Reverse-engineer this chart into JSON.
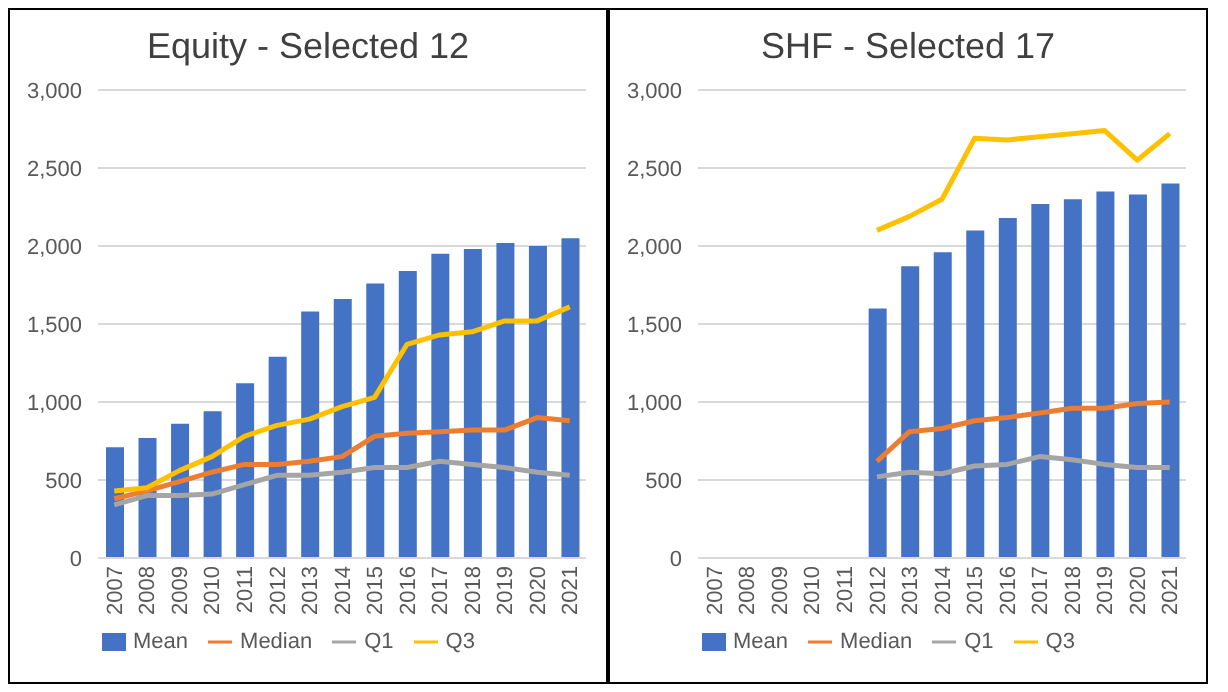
{
  "chart_data": [
    {
      "type": "bar",
      "title": "Equity - Selected 12",
      "categories": [
        "2007",
        "2008",
        "2009",
        "2010",
        "2011",
        "2012",
        "2013",
        "2014",
        "2015",
        "2016",
        "2017",
        "2018",
        "2019",
        "2020",
        "2021"
      ],
      "ylim": [
        0,
        3000
      ],
      "yticks": [
        {
          "value": 0,
          "label": "0"
        },
        {
          "value": 500,
          "label": "500"
        },
        {
          "value": 1000,
          "label": "1,000"
        },
        {
          "value": 1500,
          "label": "1,500"
        },
        {
          "value": 2000,
          "label": "2,000"
        },
        {
          "value": 2500,
          "label": "2,500"
        },
        {
          "value": 3000,
          "label": "3,000"
        }
      ],
      "grid": "y",
      "legend": "bottom",
      "series": [
        {
          "name": "Mean",
          "color": "#4472c4",
          "values": [
            710,
            770,
            860,
            940,
            1120,
            1290,
            1580,
            1660,
            1760,
            1840,
            1950,
            1980,
            2020,
            2000,
            2050
          ]
        },
        {
          "name": "Median",
          "type": "line",
          "color": "#ed7d31",
          "values": [
            380,
            430,
            490,
            550,
            600,
            600,
            620,
            650,
            780,
            800,
            810,
            820,
            820,
            900,
            880
          ]
        },
        {
          "name": "Q1",
          "type": "line",
          "color": "#a5a5a5",
          "values": [
            340,
            400,
            400,
            410,
            470,
            530,
            530,
            550,
            580,
            580,
            620,
            600,
            580,
            550,
            530
          ]
        },
        {
          "name": "Q3",
          "type": "line",
          "color": "#ffc000",
          "values": [
            430,
            450,
            560,
            650,
            780,
            850,
            890,
            970,
            1030,
            1370,
            1430,
            1450,
            1520,
            1520,
            1610
          ]
        }
      ]
    },
    {
      "type": "bar",
      "title": "SHF - Selected 17",
      "categories": [
        "2007",
        "2008",
        "2009",
        "2010",
        "2011",
        "2012",
        "2013",
        "2014",
        "2015",
        "2016",
        "2017",
        "2018",
        "2019",
        "2020",
        "2021"
      ],
      "ylim": [
        0,
        3000
      ],
      "yticks": [
        {
          "value": 0,
          "label": "0"
        },
        {
          "value": 500,
          "label": "500"
        },
        {
          "value": 1000,
          "label": "1,000"
        },
        {
          "value": 1500,
          "label": "1,500"
        },
        {
          "value": 2000,
          "label": "2,000"
        },
        {
          "value": 2500,
          "label": "2,500"
        },
        {
          "value": 3000,
          "label": "3,000"
        }
      ],
      "grid": "y",
      "legend": "bottom",
      "series": [
        {
          "name": "Mean",
          "color": "#4472c4",
          "values": [
            null,
            null,
            null,
            null,
            null,
            1600,
            1870,
            1960,
            2100,
            2180,
            2270,
            2300,
            2350,
            2330,
            2400
          ]
        },
        {
          "name": "Median",
          "type": "line",
          "color": "#ed7d31",
          "values": [
            null,
            null,
            null,
            null,
            null,
            620,
            810,
            830,
            880,
            900,
            930,
            960,
            960,
            990,
            1000
          ]
        },
        {
          "name": "Q1",
          "type": "line",
          "color": "#a5a5a5",
          "values": [
            null,
            null,
            null,
            null,
            null,
            520,
            550,
            540,
            590,
            600,
            650,
            630,
            600,
            580,
            580
          ]
        },
        {
          "name": "Q3",
          "type": "line",
          "color": "#ffc000",
          "values": [
            null,
            null,
            null,
            null,
            null,
            2100,
            2190,
            2300,
            2690,
            2680,
            2700,
            2720,
            2740,
            2550,
            2720
          ]
        }
      ]
    }
  ]
}
